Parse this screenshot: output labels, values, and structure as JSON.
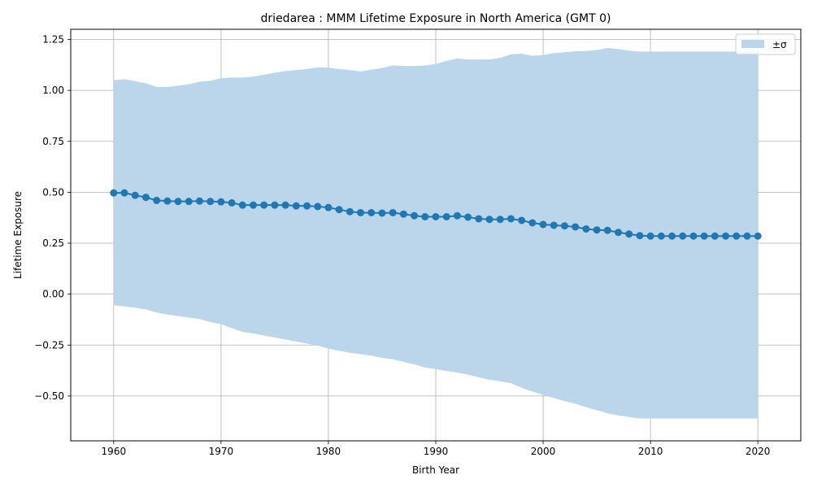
{
  "chart_data": {
    "type": "line",
    "title": "driedarea : MMM Lifetime Exposure in North America (GMT 0)",
    "xlabel": "Birth Year",
    "ylabel": "Lifetime Exposure",
    "xlim": [
      1956,
      2024
    ],
    "ylim": [
      -0.72,
      1.3
    ],
    "xticks": [
      1960,
      1970,
      1980,
      1990,
      2000,
      2010,
      2020
    ],
    "xtick_labels": [
      "1960",
      "1970",
      "1980",
      "1990",
      "2000",
      "2010",
      "2020"
    ],
    "yticks": [
      -0.5,
      -0.25,
      0.0,
      0.25,
      0.5,
      0.75,
      1.0,
      1.25
    ],
    "ytick_labels": [
      "−0.50",
      "−0.25",
      "0.00",
      "0.25",
      "0.50",
      "0.75",
      "1.00",
      "1.25"
    ],
    "grid": true,
    "legend": {
      "position": "top-right",
      "entries": [
        "±σ"
      ]
    },
    "colors": {
      "line": "#1f77b4",
      "band": "#bbd6ea",
      "grid": "#b0b0b0"
    },
    "x": [
      1960,
      1961,
      1962,
      1963,
      1964,
      1965,
      1966,
      1967,
      1968,
      1969,
      1970,
      1971,
      1972,
      1973,
      1974,
      1975,
      1976,
      1977,
      1978,
      1979,
      1980,
      1981,
      1982,
      1983,
      1984,
      1985,
      1986,
      1987,
      1988,
      1989,
      1990,
      1991,
      1992,
      1993,
      1994,
      1995,
      1996,
      1997,
      1998,
      1999,
      2000,
      2001,
      2002,
      2003,
      2004,
      2005,
      2006,
      2007,
      2008,
      2009,
      2010,
      2011,
      2012,
      2013,
      2014,
      2015,
      2016,
      2017,
      2018,
      2019,
      2020
    ],
    "series": [
      {
        "values": [
          0.497,
          0.497,
          0.485,
          0.475,
          0.46,
          0.457,
          0.455,
          0.455,
          0.457,
          0.455,
          0.453,
          0.448,
          0.437,
          0.437,
          0.437,
          0.437,
          0.437,
          0.433,
          0.433,
          0.43,
          0.425,
          0.415,
          0.405,
          0.4,
          0.4,
          0.398,
          0.4,
          0.393,
          0.385,
          0.38,
          0.38,
          0.38,
          0.385,
          0.378,
          0.37,
          0.367,
          0.367,
          0.37,
          0.362,
          0.35,
          0.342,
          0.338,
          0.335,
          0.33,
          0.32,
          0.315,
          0.313,
          0.303,
          0.295,
          0.287,
          0.285,
          0.285,
          0.285,
          0.285,
          0.285,
          0.285,
          0.285,
          0.285,
          0.285,
          0.285,
          0.285
        ]
      }
    ],
    "band": {
      "label": "±σ",
      "upper": [
        1.05,
        1.055,
        1.045,
        1.035,
        1.017,
        1.017,
        1.023,
        1.03,
        1.043,
        1.047,
        1.06,
        1.063,
        1.063,
        1.068,
        1.077,
        1.087,
        1.095,
        1.1,
        1.105,
        1.113,
        1.112,
        1.105,
        1.1,
        1.093,
        1.102,
        1.11,
        1.123,
        1.12,
        1.12,
        1.122,
        1.13,
        1.145,
        1.157,
        1.152,
        1.152,
        1.152,
        1.16,
        1.177,
        1.18,
        1.17,
        1.173,
        1.183,
        1.187,
        1.192,
        1.193,
        1.198,
        1.208,
        1.203,
        1.195,
        1.19,
        1.19,
        1.19,
        1.19,
        1.19,
        1.19,
        1.19,
        1.19,
        1.19,
        1.19,
        1.19,
        1.19
      ],
      "lower": [
        -0.055,
        -0.06,
        -0.067,
        -0.075,
        -0.09,
        -0.1,
        -0.107,
        -0.115,
        -0.122,
        -0.137,
        -0.147,
        -0.167,
        -0.185,
        -0.193,
        -0.203,
        -0.213,
        -0.223,
        -0.232,
        -0.243,
        -0.253,
        -0.267,
        -0.278,
        -0.288,
        -0.295,
        -0.302,
        -0.313,
        -0.32,
        -0.333,
        -0.345,
        -0.36,
        -0.368,
        -0.377,
        -0.385,
        -0.395,
        -0.408,
        -0.42,
        -0.428,
        -0.437,
        -0.46,
        -0.478,
        -0.495,
        -0.51,
        -0.525,
        -0.538,
        -0.555,
        -0.57,
        -0.585,
        -0.595,
        -0.603,
        -0.61,
        -0.61,
        -0.61,
        -0.61,
        -0.61,
        -0.61,
        -0.61,
        -0.61,
        -0.61,
        -0.61,
        -0.61,
        -0.61
      ]
    }
  }
}
